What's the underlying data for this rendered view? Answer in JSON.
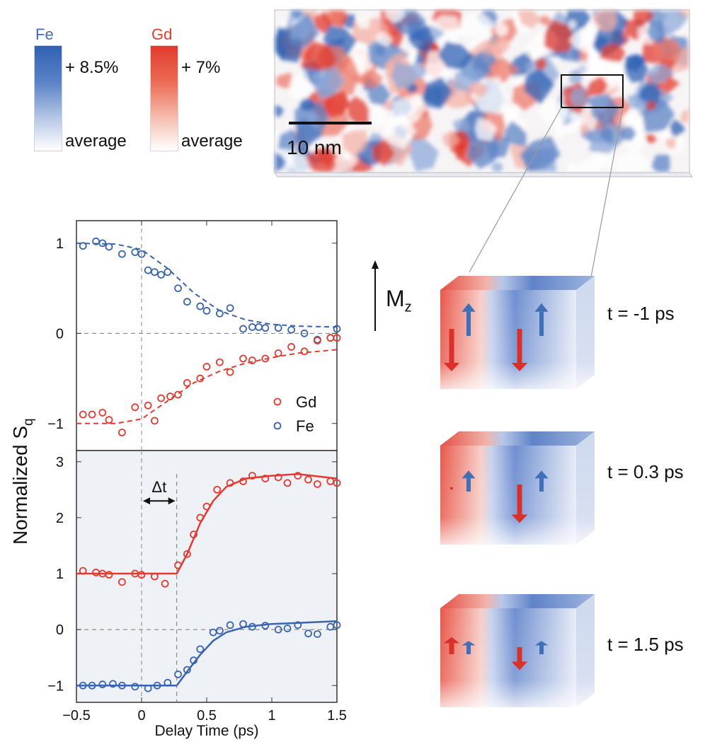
{
  "colorbars": {
    "fe": {
      "label": "Fe",
      "max_text": "+ 8.5%",
      "min_text": "average",
      "color": "#2f62b4"
    },
    "gd": {
      "label": "Gd",
      "max_text": "+ 7%",
      "min_text": "average",
      "color": "#e23a2e"
    }
  },
  "map": {
    "scalebar_label": "10 nm"
  },
  "mz_label": "M",
  "mz_sub": "z",
  "panels": [
    {
      "time_label": "t = -1 ps",
      "gd_down": 1.0,
      "fe_up": 0.75,
      "gd_right_down": 1.0,
      "fe_right_up": 0.75
    },
    {
      "time_label": "t = 0.3 ps",
      "gd_down": 0.05,
      "fe_up": 0.45,
      "gd_right_down": 0.9,
      "fe_right_up": 0.45
    },
    {
      "time_label": "t = 1.5 ps",
      "gd_down": -0.35,
      "fe_up": 0.25,
      "gd_right_down": 0.5,
      "fe_right_up": 0.25
    }
  ],
  "chart_data": [
    {
      "type": "scatter",
      "title": "",
      "ylabel": "Normalized S",
      "ylabel_sub": "q",
      "xlabel": "Delay Time (ps)",
      "xlim": [
        -0.5,
        1.5
      ],
      "ylim": [
        -1.3,
        1.25
      ],
      "yticks": [
        "1",
        "0",
        "−1"
      ],
      "yticks_values": [
        1,
        0,
        -1
      ],
      "legend": [
        {
          "name": "Gd",
          "color": "#e23a2e"
        },
        {
          "name": "Fe",
          "color": "#3a64b0"
        }
      ],
      "series": [
        {
          "name": "Fe",
          "color": "#3a64b0",
          "x": [
            -0.45,
            -0.35,
            -0.3,
            -0.25,
            -0.15,
            -0.05,
            0,
            0.05,
            0.1,
            0.15,
            0.2,
            0.28,
            0.35,
            0.45,
            0.5,
            0.6,
            0.68,
            0.78,
            0.85,
            0.9,
            0.95,
            1.05,
            1.15,
            1.25,
            1.35,
            1.45,
            1.5
          ],
          "y": [
            0.97,
            1.02,
            1.0,
            0.96,
            0.88,
            0.9,
            0.88,
            0.7,
            0.68,
            0.65,
            0.68,
            0.5,
            0.35,
            0.3,
            0.25,
            0.22,
            0.28,
            0.05,
            0.07,
            0.07,
            0.06,
            0.06,
            0.04,
            0.0,
            -0.07,
            -0.05,
            0.05
          ],
          "fit_x": [
            -0.5,
            -0.2,
            0,
            0.2,
            0.4,
            0.6,
            0.8,
            1.0,
            1.2,
            1.5
          ],
          "fit_y": [
            1.0,
            0.99,
            0.93,
            0.72,
            0.45,
            0.25,
            0.15,
            0.1,
            0.08,
            0.07
          ]
        },
        {
          "name": "Gd",
          "color": "#e23a2e",
          "x": [
            -0.45,
            -0.38,
            -0.3,
            -0.25,
            -0.15,
            -0.05,
            0.05,
            0.1,
            0.15,
            0.22,
            0.28,
            0.35,
            0.45,
            0.5,
            0.6,
            0.68,
            0.78,
            0.85,
            0.95,
            1.05,
            1.15,
            1.25,
            1.35,
            1.45,
            1.5
          ],
          "y": [
            -0.9,
            -0.9,
            -0.88,
            -0.96,
            -1.1,
            -0.82,
            -0.8,
            -0.97,
            -0.72,
            -0.7,
            -0.68,
            -0.55,
            -0.5,
            -0.37,
            -0.32,
            -0.43,
            -0.28,
            -0.3,
            -0.28,
            -0.22,
            -0.15,
            -0.2,
            -0.08,
            -0.05,
            -0.05
          ],
          "fit_x": [
            -0.5,
            -0.2,
            0,
            0.2,
            0.4,
            0.6,
            0.8,
            1.0,
            1.2,
            1.5
          ],
          "fit_y": [
            -1.0,
            -1.0,
            -0.95,
            -0.75,
            -0.55,
            -0.42,
            -0.33,
            -0.27,
            -0.22,
            -0.18
          ]
        }
      ]
    },
    {
      "type": "scatter",
      "title": "",
      "xlabel": "Delay Time (ps)",
      "xlim": [
        -0.5,
        1.5
      ],
      "ylim": [
        -1.3,
        3.2
      ],
      "xticks": [
        "−0.5",
        "0",
        "0.5",
        "1",
        "1.5"
      ],
      "xticks_values": [
        -0.5,
        0,
        0.5,
        1,
        1.5
      ],
      "yticks": [
        "3",
        "2",
        "1",
        "0",
        "−1"
      ],
      "yticks_values": [
        3,
        2,
        1,
        0,
        -1
      ],
      "annotation": "Δt",
      "delta_t": [
        0,
        0.27
      ],
      "series": [
        {
          "name": "Gd",
          "color": "#e23a2e",
          "x": [
            -0.45,
            -0.35,
            -0.3,
            -0.25,
            -0.15,
            -0.05,
            0,
            0.1,
            0.18,
            0.28,
            0.35,
            0.4,
            0.45,
            0.5,
            0.58,
            0.68,
            0.78,
            0.85,
            0.95,
            1.05,
            1.12,
            1.2,
            1.28,
            1.35,
            1.45,
            1.5
          ],
          "y": [
            1.05,
            1.02,
            1.0,
            0.98,
            0.85,
            1.0,
            0.98,
            0.95,
            0.82,
            1.15,
            1.35,
            1.7,
            2.0,
            2.2,
            2.5,
            2.62,
            2.65,
            2.75,
            2.7,
            2.72,
            2.62,
            2.75,
            2.68,
            2.6,
            2.65,
            2.62
          ],
          "fit_x": [
            -0.5,
            0,
            0.27,
            0.35,
            0.45,
            0.55,
            0.65,
            0.8,
            1.0,
            1.2,
            1.5
          ],
          "fit_y": [
            1.0,
            1.0,
            1.0,
            1.35,
            1.9,
            2.3,
            2.55,
            2.7,
            2.75,
            2.78,
            2.7
          ]
        },
        {
          "name": "Fe",
          "color": "#3a64b0",
          "x": [
            -0.45,
            -0.38,
            -0.3,
            -0.22,
            -0.15,
            -0.05,
            0.05,
            0.12,
            0.2,
            0.28,
            0.35,
            0.4,
            0.45,
            0.55,
            0.6,
            0.68,
            0.78,
            0.85,
            0.95,
            1.05,
            1.12,
            1.2,
            1.28,
            1.35,
            1.45,
            1.5
          ],
          "y": [
            -1.0,
            -1.0,
            -0.98,
            -0.97,
            -1.0,
            -1.02,
            -1.05,
            -1.0,
            -0.95,
            -0.8,
            -0.72,
            -0.55,
            -0.35,
            -0.05,
            -0.02,
            0.08,
            0.1,
            0.05,
            0.07,
            0.0,
            0.02,
            0.08,
            -0.07,
            -0.08,
            0.05,
            0.08
          ],
          "fit_x": [
            -0.5,
            0,
            0.27,
            0.35,
            0.45,
            0.55,
            0.65,
            0.8,
            1.0,
            1.2,
            1.5
          ],
          "fit_y": [
            -1.0,
            -1.0,
            -1.0,
            -0.75,
            -0.45,
            -0.2,
            -0.05,
            0.05,
            0.1,
            0.12,
            0.15
          ]
        }
      ]
    }
  ]
}
